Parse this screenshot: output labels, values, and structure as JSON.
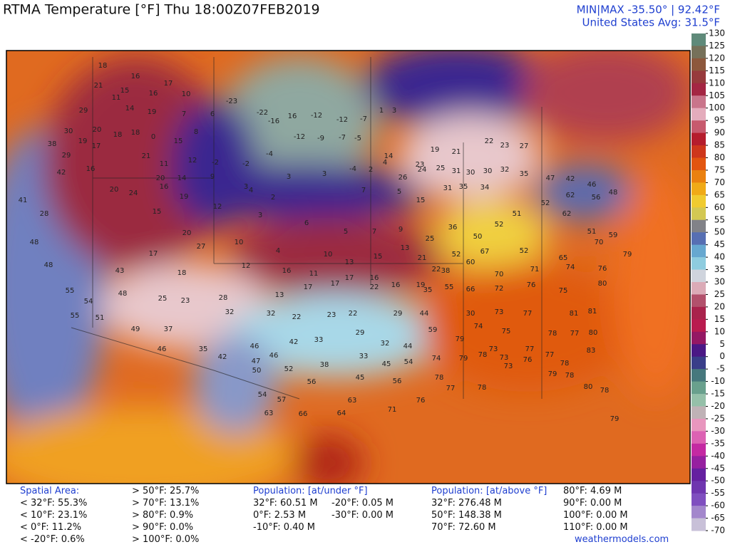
{
  "header": {
    "title": "RTMA Temperature [°F]  Thu 18:00Z07FEB2019",
    "minmax": "MIN|MAX -35.50° | 92.42°F",
    "average": "United States Avg: 31.5°F"
  },
  "colorbar": {
    "ticks": [
      130,
      125,
      120,
      115,
      110,
      105,
      100,
      95,
      90,
      85,
      80,
      75,
      70,
      65,
      60,
      55,
      50,
      45,
      40,
      35,
      30,
      25,
      20,
      15,
      10,
      5,
      0,
      -5,
      -10,
      -15,
      -20,
      -25,
      -30,
      -35,
      -40,
      -45,
      -50,
      -55,
      -60,
      -65,
      -70
    ]
  },
  "stations": [
    18,
    16,
    17,
    21,
    15,
    16,
    10,
    11,
    14,
    29,
    19,
    7,
    6,
    -23,
    -22,
    -16,
    16,
    -12,
    -12,
    -7,
    1,
    3,
    30,
    20,
    18,
    18,
    0,
    15,
    8,
    38,
    19,
    17,
    21,
    11,
    29,
    16,
    12,
    -2,
    -2,
    -4,
    -12,
    -9,
    -7,
    -5,
    14,
    23,
    19,
    21,
    22,
    23,
    27,
    42,
    20,
    14,
    9,
    3,
    3,
    3,
    -4,
    2,
    4,
    26,
    24,
    25,
    31,
    30,
    30,
    32,
    35,
    47,
    42,
    46,
    20,
    24,
    16,
    19,
    12,
    4,
    2,
    7,
    5,
    15,
    31,
    35,
    34,
    52,
    62,
    56,
    48,
    41,
    28,
    15,
    20,
    3,
    6,
    5,
    7,
    9,
    25,
    36,
    50,
    52,
    51,
    62,
    51,
    59,
    48,
    17,
    27,
    10,
    4,
    10,
    13,
    15,
    13,
    21,
    22,
    52,
    67,
    52,
    65,
    70,
    79,
    48,
    43,
    18,
    12,
    16,
    11,
    17,
    16,
    16,
    19,
    38,
    60,
    70,
    71,
    74,
    76,
    55,
    54,
    48,
    23,
    28,
    13,
    17,
    17,
    22,
    35,
    55,
    66,
    72,
    76,
    75,
    80,
    55,
    51,
    25,
    32,
    32,
    22,
    23,
    22,
    29,
    44,
    30,
    73,
    77,
    81,
    81,
    49,
    37,
    29,
    59,
    74,
    75,
    78,
    80,
    42,
    33,
    32,
    44,
    79,
    73,
    77,
    77,
    46,
    35,
    46,
    46,
    33,
    74,
    79,
    78,
    73,
    77,
    83,
    42,
    47,
    38,
    45,
    54,
    73,
    76,
    78,
    50,
    52,
    56,
    45,
    56,
    78,
    79,
    78,
    54,
    57,
    63,
    77,
    78,
    80,
    63,
    66,
    64,
    71,
    76,
    78,
    79
  ],
  "footer": {
    "spatial": {
      "title": "Spatial Area:",
      "items": [
        "< 32°F: 55.3%",
        "< 10°F: 23.1%",
        "< 0°F: 11.2%",
        "< -20°F: 0.6%",
        "> 50°F: 25.7%",
        "> 70°F: 13.1%",
        "> 80°F: 0.9%",
        "> 90°F: 0.0%",
        "> 100°F: 0.0%"
      ]
    },
    "population_under": {
      "title": "Population: [at/under °F]",
      "items": [
        "32°F: 60.51 M",
        "0°F: 2.53 M",
        "-10°F: 0.40 M",
        "-20°F: 0.05 M",
        "-30°F: 0.00 M"
      ]
    },
    "population_above": {
      "title": "Population: [at/above °F]",
      "items": [
        "32°F: 276.48 M",
        "50°F: 148.38 M",
        "70°F: 72.60 M",
        "80°F: 4.69 M",
        "90°F: 0.00 M",
        "100°F: 0.00 M",
        "110°F: 0.00 M"
      ]
    },
    "credit": "weathermodels.com"
  }
}
